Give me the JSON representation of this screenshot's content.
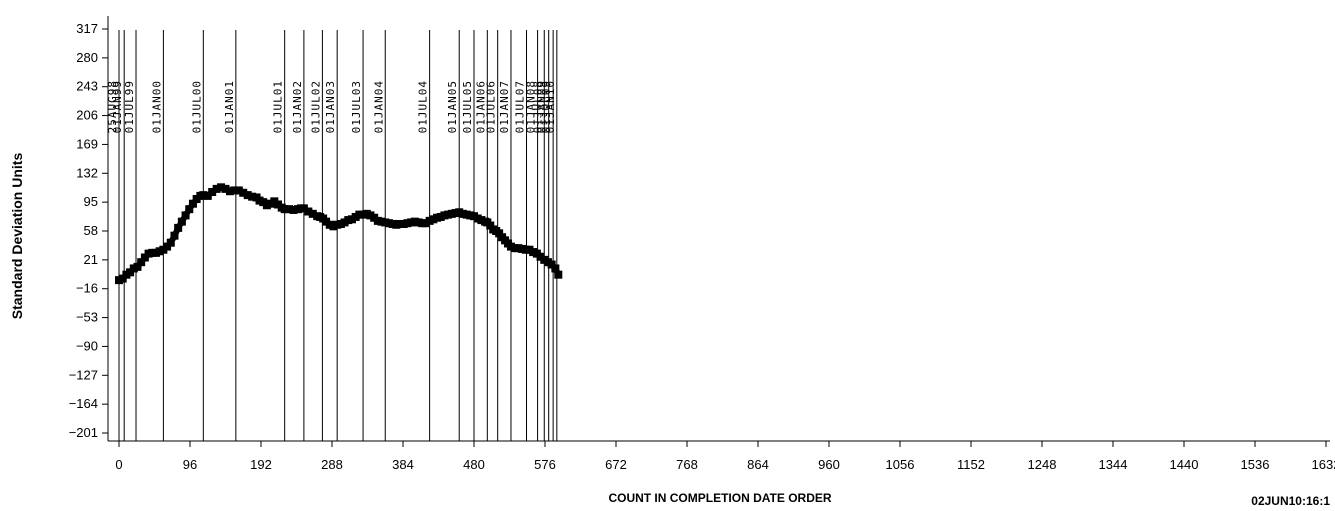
{
  "chart_data": {
    "type": "line",
    "title": "",
    "xlabel": "COUNT IN COMPLETION DATE ORDER",
    "ylabel": "Standard Deviation Units",
    "footer_stamp": "02JUN10:16:1",
    "xlim": [
      -5,
      1635
    ],
    "ylim": [
      -201,
      317
    ],
    "xticks": [
      0,
      96,
      192,
      288,
      384,
      480,
      576,
      672,
      768,
      864,
      960,
      1056,
      1152,
      1248,
      1344,
      1440,
      1536,
      1632
    ],
    "yticks": [
      317,
      280,
      243,
      206,
      169,
      132,
      95,
      58,
      21,
      -16,
      -53,
      -90,
      -127,
      -164,
      -201
    ],
    "date_markers": [
      {
        "x": 0,
        "label": "25AUG98"
      },
      {
        "x": 7,
        "label": "01JAN99"
      },
      {
        "x": 23,
        "label": "01JUL99"
      },
      {
        "x": 60,
        "label": "01JAN00"
      },
      {
        "x": 114,
        "label": "01JUL00"
      },
      {
        "x": 158,
        "label": "01JAN01"
      },
      {
        "x": 224,
        "label": "01JUL01"
      },
      {
        "x": 250,
        "label": "01JAN02"
      },
      {
        "x": 275,
        "label": "01JUL02"
      },
      {
        "x": 295,
        "label": "01JAN03"
      },
      {
        "x": 330,
        "label": "01JUL03"
      },
      {
        "x": 360,
        "label": "01JAN04"
      },
      {
        "x": 420,
        "label": "01JUL04"
      },
      {
        "x": 460,
        "label": "01JAN05"
      },
      {
        "x": 480,
        "label": "01JUL05"
      },
      {
        "x": 498,
        "label": "01JAN06"
      },
      {
        "x": 512,
        "label": "01JUL06"
      },
      {
        "x": 530,
        "label": "01JAN07"
      },
      {
        "x": 551,
        "label": "01JUL07"
      },
      {
        "x": 566,
        "label": "01JAN08"
      },
      {
        "x": 575,
        "label": "01JUL08"
      },
      {
        "x": 581,
        "label": "01JAN09"
      },
      {
        "x": 587,
        "label": "01JUL09"
      },
      {
        "x": 592,
        "label": "01JAN10"
      }
    ],
    "series": [
      {
        "values": [
          [
            0,
            -5
          ],
          [
            5,
            -3
          ],
          [
            10,
            2
          ],
          [
            15,
            5
          ],
          [
            20,
            10
          ],
          [
            25,
            12
          ],
          [
            30,
            18
          ],
          [
            35,
            24
          ],
          [
            40,
            29
          ],
          [
            45,
            30
          ],
          [
            50,
            30
          ],
          [
            55,
            32
          ],
          [
            60,
            34
          ],
          [
            65,
            38
          ],
          [
            70,
            43
          ],
          [
            75,
            52
          ],
          [
            80,
            62
          ],
          [
            85,
            70
          ],
          [
            90,
            78
          ],
          [
            95,
            86
          ],
          [
            100,
            93
          ],
          [
            105,
            99
          ],
          [
            110,
            103
          ],
          [
            114,
            104
          ],
          [
            120,
            103
          ],
          [
            126,
            108
          ],
          [
            132,
            112
          ],
          [
            138,
            114
          ],
          [
            144,
            112
          ],
          [
            150,
            109
          ],
          [
            156,
            110
          ],
          [
            162,
            110
          ],
          [
            168,
            107
          ],
          [
            174,
            104
          ],
          [
            180,
            102
          ],
          [
            186,
            101
          ],
          [
            190,
            97
          ],
          [
            195,
            95
          ],
          [
            200,
            91
          ],
          [
            205,
            93
          ],
          [
            210,
            96
          ],
          [
            215,
            92
          ],
          [
            220,
            88
          ],
          [
            224,
            86
          ],
          [
            230,
            86
          ],
          [
            236,
            85
          ],
          [
            242,
            86
          ],
          [
            246,
            87
          ],
          [
            250,
            87
          ],
          [
            256,
            83
          ],
          [
            262,
            80
          ],
          [
            268,
            77
          ],
          [
            272,
            76
          ],
          [
            276,
            74
          ],
          [
            280,
            70
          ],
          [
            285,
            66
          ],
          [
            290,
            64
          ],
          [
            295,
            66
          ],
          [
            300,
            67
          ],
          [
            305,
            69
          ],
          [
            310,
            72
          ],
          [
            315,
            73
          ],
          [
            320,
            76
          ],
          [
            325,
            79
          ],
          [
            330,
            79
          ],
          [
            335,
            80
          ],
          [
            340,
            78
          ],
          [
            345,
            75
          ],
          [
            350,
            71
          ],
          [
            355,
            70
          ],
          [
            360,
            69
          ],
          [
            365,
            68
          ],
          [
            370,
            67
          ],
          [
            375,
            66
          ],
          [
            380,
            67
          ],
          [
            385,
            67
          ],
          [
            390,
            68
          ],
          [
            395,
            69
          ],
          [
            400,
            70
          ],
          [
            405,
            69
          ],
          [
            410,
            68
          ],
          [
            415,
            68
          ],
          [
            420,
            71
          ],
          [
            425,
            73
          ],
          [
            430,
            75
          ],
          [
            435,
            76
          ],
          [
            440,
            78
          ],
          [
            445,
            79
          ],
          [
            450,
            80
          ],
          [
            455,
            81
          ],
          [
            460,
            82
          ],
          [
            465,
            80
          ],
          [
            470,
            79
          ],
          [
            475,
            78
          ],
          [
            480,
            77
          ],
          [
            485,
            74
          ],
          [
            490,
            72
          ],
          [
            495,
            70
          ],
          [
            498,
            69
          ],
          [
            502,
            65
          ],
          [
            506,
            60
          ],
          [
            510,
            58
          ],
          [
            514,
            55
          ],
          [
            518,
            50
          ],
          [
            522,
            46
          ],
          [
            526,
            42
          ],
          [
            530,
            38
          ],
          [
            535,
            36
          ],
          [
            540,
            36
          ],
          [
            545,
            35
          ],
          [
            550,
            34
          ],
          [
            555,
            34
          ],
          [
            560,
            31
          ],
          [
            565,
            29
          ],
          [
            570,
            25
          ],
          [
            575,
            21
          ],
          [
            580,
            18
          ],
          [
            585,
            15
          ],
          [
            590,
            10
          ],
          [
            594,
            2
          ]
        ]
      }
    ]
  }
}
